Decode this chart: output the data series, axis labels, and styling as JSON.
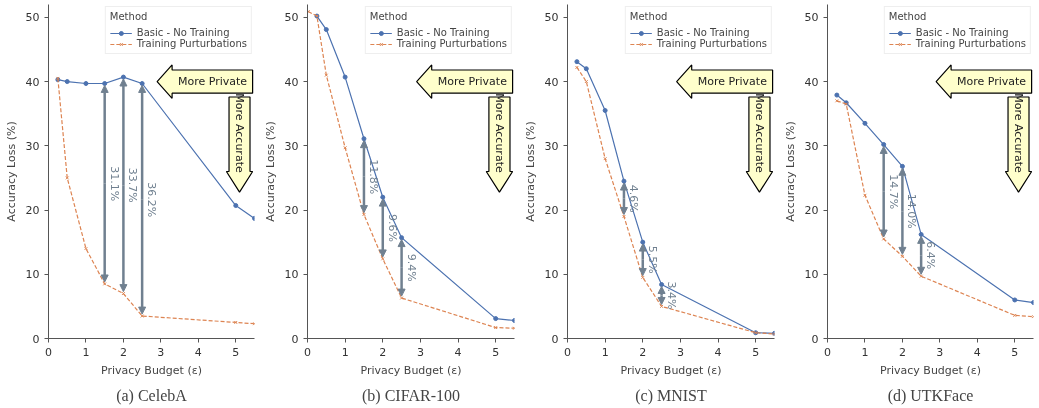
{
  "chart_data": [
    {
      "type": "line",
      "title": "(a) CelebA",
      "xlabel": "Privacy Budget (ε)",
      "ylabel": "Accuracy Loss (%)",
      "legend_title": "Method",
      "legend": "top right",
      "xlim": [
        0,
        5.5
      ],
      "ylim": [
        0,
        52
      ],
      "xticks": [
        0,
        1,
        2,
        3,
        4,
        5
      ],
      "yticks": [
        0,
        10,
        20,
        30,
        40,
        50
      ],
      "grid": false,
      "series": [
        {
          "name": "Basic - No Training",
          "color": "#4c72b0",
          "marker": "circle",
          "line_style": "solid",
          "x": [
            0.25,
            0.5,
            1,
            1.5,
            2,
            2.5,
            5,
            5.5
          ],
          "values": [
            40.3,
            40.0,
            39.7,
            39.7,
            40.7,
            39.7,
            20.7,
            18.7
          ]
        },
        {
          "name": "Training Purturbations",
          "color": "#dd8452",
          "marker": "cross",
          "line_style": "dashed",
          "x": [
            0.25,
            0.5,
            1,
            1.5,
            2,
            2.5,
            5,
            5.5
          ],
          "values": [
            40.5,
            25.0,
            14.0,
            8.5,
            7.0,
            3.5,
            2.5,
            2.3
          ]
        }
      ],
      "annotations": [
        {
          "text": "31.1%",
          "x": 1.5,
          "y": 39.7
        },
        {
          "text": "33.7%",
          "x": 2,
          "y": 40.7
        },
        {
          "text": "36.2%",
          "x": 2.5,
          "y": 39.7
        },
        "More Private",
        "More Accurate"
      ]
    },
    {
      "type": "line",
      "title": "(b) CIFAR-100",
      "xlabel": "Privacy Budget (ε)",
      "ylabel": "Accuracy Loss (%)",
      "legend_title": "Method",
      "legend": "top right",
      "xlim": [
        0,
        5.5
      ],
      "ylim": [
        0,
        52
      ],
      "xticks": [
        0,
        1,
        2,
        3,
        4,
        5
      ],
      "yticks": [
        0,
        10,
        20,
        30,
        40,
        50
      ],
      "grid": false,
      "series": [
        {
          "name": "Basic - No Training",
          "color": "#4c72b0",
          "marker": "circle",
          "line_style": "solid",
          "x": [
            0.25,
            0.5,
            1,
            1.5,
            2,
            2.5,
            5,
            5.5
          ],
          "values": [
            50.2,
            48.1,
            40.7,
            31.1,
            22.0,
            15.7,
            3.1,
            2.8
          ]
        },
        {
          "name": "Training Purturbations",
          "color": "#dd8452",
          "marker": "cross",
          "line_style": "dashed",
          "x": [
            0.02,
            0.25,
            0.5,
            1,
            1.5,
            2,
            2.5,
            5,
            5.5
          ],
          "values": [
            50.9,
            50.2,
            41.0,
            29.7,
            19.3,
            12.4,
            6.3,
            1.7,
            1.6
          ]
        }
      ],
      "annotations": [
        {
          "text": "11.8%",
          "x": 1.5,
          "y": 31.1
        },
        {
          "text": "9.6%",
          "x": 2,
          "y": 22.0
        },
        {
          "text": "9.4%",
          "x": 2.5,
          "y": 15.7
        },
        "More Private",
        "More Accurate"
      ]
    },
    {
      "type": "line",
      "title": "(c) MNIST",
      "xlabel": "Privacy Budget (ε)",
      "ylabel": "Accuracy Loss (%)",
      "legend_title": "Method",
      "legend": "top right",
      "xlim": [
        0,
        5.5
      ],
      "ylim": [
        0,
        52
      ],
      "xticks": [
        0,
        1,
        2,
        3,
        4,
        5
      ],
      "yticks": [
        0,
        10,
        20,
        30,
        40,
        50
      ],
      "grid": false,
      "series": [
        {
          "name": "Basic - No Training",
          "color": "#4c72b0",
          "marker": "circle",
          "line_style": "solid",
          "x": [
            0.25,
            0.5,
            1,
            1.5,
            2,
            2.5,
            5,
            5.5
          ],
          "values": [
            43.1,
            42.0,
            35.5,
            24.5,
            15.0,
            8.4,
            0.9,
            0.8
          ]
        },
        {
          "name": "Training Purturbations",
          "color": "#dd8452",
          "marker": "cross",
          "line_style": "dashed",
          "x": [
            0.25,
            0.5,
            1,
            1.5,
            2,
            2.5,
            5,
            5.5
          ],
          "values": [
            42.2,
            40.0,
            28.0,
            19.0,
            9.5,
            5.0,
            0.9,
            0.7
          ]
        }
      ],
      "annotations": [
        {
          "text": "4.6%",
          "x": 1.5,
          "y": 24.5
        },
        {
          "text": "5.5%",
          "x": 2,
          "y": 15.0
        },
        {
          "text": "3.4%",
          "x": 2.5,
          "y": 8.4
        },
        "More Private",
        "More Accurate"
      ]
    },
    {
      "type": "line",
      "title": "(d) UTKFace",
      "xlabel": "Privacy Budget (ε)",
      "ylabel": "Accuracy Loss (%)",
      "legend_title": "Method",
      "legend": "top right",
      "xlim": [
        0,
        5.5
      ],
      "ylim": [
        0,
        52
      ],
      "xticks": [
        0,
        1,
        2,
        3,
        4,
        5
      ],
      "yticks": [
        0,
        10,
        20,
        30,
        40,
        50
      ],
      "grid": false,
      "series": [
        {
          "name": "Basic - No Training",
          "color": "#4c72b0",
          "marker": "circle",
          "line_style": "solid",
          "x": [
            0.25,
            0.5,
            1,
            1.5,
            2,
            2.5,
            5,
            5.5
          ],
          "values": [
            37.9,
            36.7,
            33.5,
            30.2,
            26.8,
            16.2,
            6.0,
            5.6
          ]
        },
        {
          "name": "Training Purturbations",
          "color": "#dd8452",
          "marker": "cross",
          "line_style": "dashed",
          "x": [
            0.25,
            0.5,
            1,
            1.5,
            2,
            2.5,
            5,
            5.5
          ],
          "values": [
            37.0,
            36.5,
            22.3,
            15.5,
            12.8,
            9.7,
            3.6,
            3.4
          ]
        }
      ],
      "annotations": [
        {
          "text": "14.7%",
          "x": 1.5,
          "y": 30.2
        },
        {
          "text": "14.0%",
          "x": 2,
          "y": 26.8
        },
        {
          "text": "6.4%",
          "x": 2.5,
          "y": 16.2
        },
        "More Private",
        "More Accurate"
      ]
    }
  ]
}
